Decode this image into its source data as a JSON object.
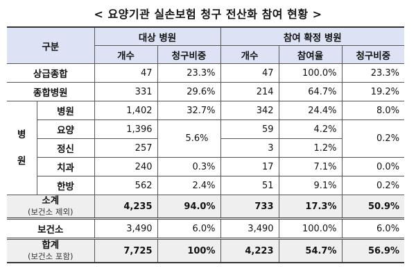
{
  "title": "< 요양기관 실손보험 청구 전산화 참여 현황 >",
  "header": {
    "category": "구분",
    "group_target": "대상 병원",
    "group_participating": "참여 확정 병원",
    "columns": [
      "개수",
      "청구비중",
      "개수",
      "참여율",
      "청구비중"
    ]
  },
  "rows": {
    "sanggeup": {
      "label": "상급종합",
      "target_count": "47",
      "target_share": "23.3%",
      "part_count": "47",
      "part_rate": "100.0%",
      "part_share": "23.3%"
    },
    "jonghap": {
      "label": "종합병원",
      "target_count": "331",
      "target_share": "29.6%",
      "part_count": "214",
      "part_rate": "64.7%",
      "part_share": "19.2%"
    },
    "hospital_group_label": "병원",
    "hospital": {
      "label": "병원",
      "target_count": "1,402",
      "target_share": "32.7%",
      "part_count": "342",
      "part_rate": "24.4%",
      "part_share": "8.0%"
    },
    "yoyang": {
      "label": "요양",
      "target_count": "1,396",
      "part_count": "59",
      "part_rate": "4.2%"
    },
    "jeongsin": {
      "label": "정신",
      "target_count": "257",
      "part_count": "3",
      "part_rate": "1.2%"
    },
    "yoyang_jeongsin_target_share": "5.6%",
    "yoyang_jeongsin_part_share": "0.2%",
    "chigwa": {
      "label": "치과",
      "target_count": "240",
      "target_share": "0.3%",
      "part_count": "17",
      "part_rate": "7.1%",
      "part_share": "0.0%"
    },
    "hanbang": {
      "label": "한방",
      "target_count": "562",
      "target_share": "2.4%",
      "part_count": "51",
      "part_rate": "9.1%",
      "part_share": "0.2%"
    },
    "subtotal": {
      "label": "소계",
      "note": "(보건소 제외)",
      "target_count": "4,235",
      "target_share": "94.0%",
      "part_count": "733",
      "part_rate": "17.3%",
      "part_share": "50.9%"
    },
    "bogeonso": {
      "label": "보건소",
      "target_count": "3,490",
      "target_share": "6.0%",
      "part_count": "3,490",
      "part_rate": "100.0%",
      "part_share": "6.0%"
    },
    "total": {
      "label": "합계",
      "note": "(보건소 포함)",
      "target_count": "7,725",
      "target_share": "100%",
      "part_count": "4,223",
      "part_rate": "54.7%",
      "part_share": "56.9%"
    }
  },
  "colors": {
    "header_bg": "#dde3f5",
    "summary_bg": "#efefef",
    "border": "#555555"
  }
}
